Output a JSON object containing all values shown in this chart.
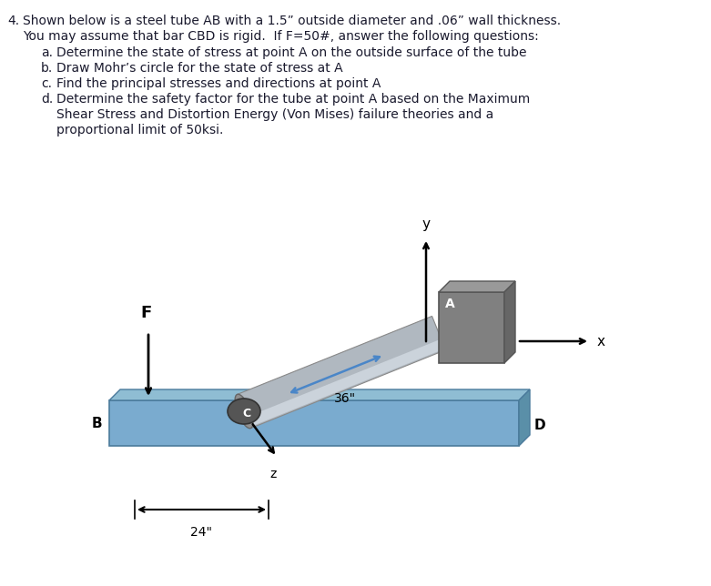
{
  "background_color": "#ffffff",
  "fig_width": 7.81,
  "fig_height": 6.44,
  "text_color": "#1a1a2e",
  "bar_color_main": "#7aabcf",
  "bar_color_top": "#8fbdd3",
  "bar_color_right": "#5a8fa8",
  "bar_color_bottom": "#4a7a9b",
  "bar_edge": "#4a7a9b",
  "plate_color_main": "#808080",
  "plate_color_top": "#999999",
  "plate_color_right": "#666666",
  "plate_edge": "#555555",
  "tube_color_main": "#b0b8c0",
  "tube_color_hl": "#d0d8e0",
  "tube_color_end": "#888888",
  "c_ellipse_color": "#555555",
  "label_A": "A",
  "label_B": "B",
  "label_C": "C",
  "label_D": "D",
  "label_F": "F",
  "dim_36": "36\"",
  "dim_24": "24\"",
  "axis_x": "x",
  "axis_y": "y",
  "axis_z": "z",
  "arrow_blue": "#4a86c8",
  "arrow_black": "#000000"
}
